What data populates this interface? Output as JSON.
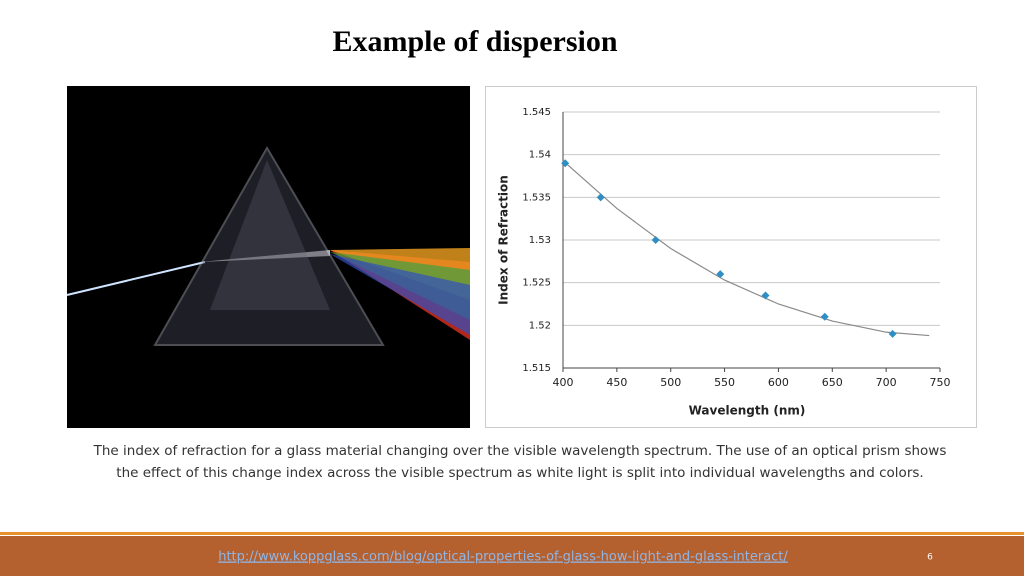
{
  "title": "Example of dispersion",
  "caption": [
    "The index of refraction for a glass material changing over the visible wavelength spectrum. The use of an optical prism shows",
    "the effect of this change index across the visible spectrum as white light is split into individual wavelengths and colors."
  ],
  "footer_link": "http://www.koppglass.com/blog/optical-properties-of-glass-how-light-and-glass-interact/",
  "page_number": "6",
  "chart_data": {
    "type": "scatter",
    "x_label": "Wavelength (nm)",
    "y_label": "Index of Refraction",
    "xlim": [
      400,
      750
    ],
    "xticks": [
      400,
      450,
      500,
      550,
      600,
      650,
      700,
      750
    ],
    "ylim": [
      1.515,
      1.545
    ],
    "yticks": [
      1.515,
      1.52,
      1.525,
      1.53,
      1.535,
      1.54,
      1.545
    ],
    "grid": true,
    "series": [
      {
        "color": "#2f8fc4",
        "x": [
          402,
          435,
          486,
          546,
          588,
          643,
          706
        ],
        "values": [
          1.539,
          1.535,
          1.53,
          1.526,
          1.5235,
          1.521,
          1.519
        ]
      },
      {
        "type": "line",
        "color": "#8a8a8a",
        "x": [
          400,
          450,
          500,
          550,
          600,
          650,
          700,
          740
        ],
        "values": [
          1.5393,
          1.5337,
          1.529,
          1.5253,
          1.5225,
          1.5205,
          1.5192,
          1.5188
        ]
      }
    ]
  }
}
